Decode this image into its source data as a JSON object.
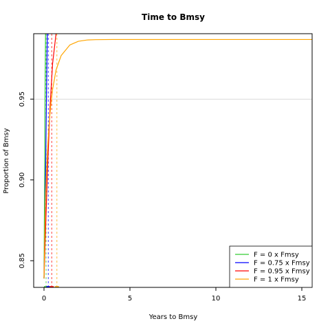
{
  "chart_data": {
    "type": "line",
    "title": "Time to Bmsy",
    "xlabel": "Years to Bmsy",
    "ylabel": "Proportion of Bmsy",
    "xlim": [
      -0.6,
      15.6
    ],
    "ylim": [
      0.8335,
      0.9905
    ],
    "xticks": [
      0,
      5,
      10,
      15
    ],
    "yticks": [
      0.85,
      0.9,
      0.95
    ],
    "reference_line": {
      "y": 0.95,
      "color": "#d9d9d9"
    },
    "legend": {
      "placement": "bottom-right"
    },
    "series": [
      {
        "name": "F = 0 x Fmsy",
        "color": "#33cc33",
        "curve": [
          [
            0,
            0.839
          ],
          [
            0.035,
            0.9
          ],
          [
            0.065,
            0.96
          ],
          [
            0.09,
            0.9905
          ]
        ],
        "marker_x": 0.12
      },
      {
        "name": "F = 0.75 x Fmsy",
        "color": "#0000ff",
        "curve": [
          [
            0,
            0.839
          ],
          [
            0.06,
            0.875
          ],
          [
            0.12,
            0.93
          ],
          [
            0.19,
            0.9905
          ]
        ],
        "marker_x": 0.25
      },
      {
        "name": "F = 0.95 x Fmsy",
        "color": "#ff0000",
        "curve": [
          [
            0,
            0.839
          ],
          [
            0.1,
            0.872
          ],
          [
            0.2,
            0.905
          ],
          [
            0.35,
            0.945
          ],
          [
            0.5,
            0.972
          ],
          [
            0.7,
            0.9905
          ]
        ],
        "marker_x": 0.45
      },
      {
        "name": "F = 1 x Fmsy",
        "color": "#ffa500",
        "curve": [
          [
            0,
            0.839
          ],
          [
            0.05,
            0.87
          ],
          [
            0.1,
            0.892
          ],
          [
            0.2,
            0.918
          ],
          [
            0.3,
            0.935
          ],
          [
            0.4,
            0.947
          ],
          [
            0.5,
            0.956
          ],
          [
            0.7,
            0.968
          ],
          [
            1,
            0.977
          ],
          [
            1.5,
            0.9835
          ],
          [
            2,
            0.9858
          ],
          [
            2.5,
            0.9866
          ],
          [
            3,
            0.9868
          ],
          [
            4,
            0.9869
          ],
          [
            15.6,
            0.9869
          ]
        ],
        "marker_x": 0.75
      }
    ]
  }
}
